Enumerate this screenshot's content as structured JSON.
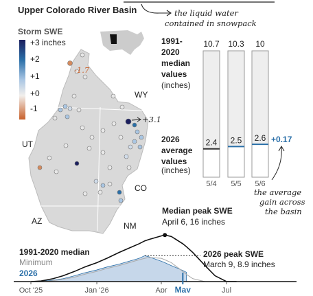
{
  "header": {
    "title": "Upper Colorado River Basin",
    "note": [
      "the liquid water",
      "contained in snowpack"
    ]
  },
  "map": {
    "legend_title": "Storm SWE",
    "legend_labels": [
      "+3 inches",
      "+2",
      "+1",
      "+0",
      "-1"
    ],
    "states": [
      "WY",
      "UT",
      "CO",
      "AZ",
      "NM"
    ],
    "callouts": [
      "-1.7",
      "+3.1"
    ]
  },
  "chart_data": [
    {
      "type": "bar",
      "median_label": [
        "1991-",
        "2020",
        "median",
        "values"
      ],
      "median_unit": "(inches)",
      "current_label": [
        "2026",
        "average",
        "values"
      ],
      "current_unit": "(inches)",
      "categories": [
        "5/4",
        "5/5",
        "5/6"
      ],
      "median_values": [
        10.7,
        10.3,
        10
      ],
      "values": [
        2.4,
        2.5,
        2.6
      ],
      "line_colors": [
        "#333333",
        "#2a6fa8",
        "#2a6fa8"
      ],
      "change": {
        "value": 0.17,
        "label": "+0.17"
      },
      "note": [
        "the average",
        "gain across",
        "the basin"
      ]
    },
    {
      "type": "line",
      "x": [
        "2025-10-01",
        "2025-10-15",
        "2025-11-01",
        "2025-11-15",
        "2025-12-01",
        "2025-12-15",
        "2026-01-01",
        "2026-01-15",
        "2026-02-01",
        "2026-02-15",
        "2026-03-01",
        "2026-03-09",
        "2026-03-15",
        "2026-04-01",
        "2026-04-06",
        "2026-04-15",
        "2026-05-01",
        "2026-05-06",
        "2026-05-15",
        "2026-06-01",
        "2026-06-15",
        "2026-07-01",
        "2026-07-15"
      ],
      "series": [
        {
          "name": "1991-2020 median",
          "color": "#111111",
          "values": [
            0,
            0.2,
            1,
            2,
            3.5,
            5,
            6.5,
            8,
            10,
            11.5,
            13,
            14,
            14.5,
            15.7,
            16,
            15.5,
            13,
            12,
            10,
            5.5,
            2,
            0,
            0
          ]
        },
        {
          "name": "Minimum",
          "color": "#aaaaaa",
          "values": [
            0,
            0,
            0.3,
            0.8,
            1.5,
            2.5,
            3.5,
            4.5,
            5.5,
            6.5,
            7.5,
            8,
            8.3,
            8,
            7.5,
            6.5,
            3.5,
            2.5,
            1,
            0,
            0,
            0,
            0
          ]
        },
        {
          "name": "2026",
          "color": "#2a6fa8",
          "fill": "#c6d7ea",
          "values": [
            0,
            0.1,
            0.5,
            1,
            2,
            3,
            4,
            5,
            6,
            7,
            8,
            8.9,
            8.5,
            7,
            6.5,
            5.5,
            3.8,
            3.2,
            null,
            null,
            null,
            null,
            null
          ]
        }
      ],
      "xlim": [
        "2025-10-01",
        "2026-07-01"
      ],
      "ylim": [
        0,
        17
      ],
      "xticks": [
        {
          "value": "2025-10-01",
          "label": "Oct '25"
        },
        {
          "value": "2026-01-01",
          "label": "Jan '26"
        },
        {
          "value": "2026-04-01",
          "label": "Apr"
        },
        {
          "value": "2026-05-01",
          "label": "May"
        },
        {
          "value": "2026-07-01",
          "label": "Jul"
        }
      ],
      "peak_median": {
        "title": "Median peak SWE",
        "text": "April 6, 16 inches"
      },
      "peak_2026": {
        "title": "2026 peak SWE",
        "text": "March 9, 8.9 inches"
      }
    }
  ]
}
